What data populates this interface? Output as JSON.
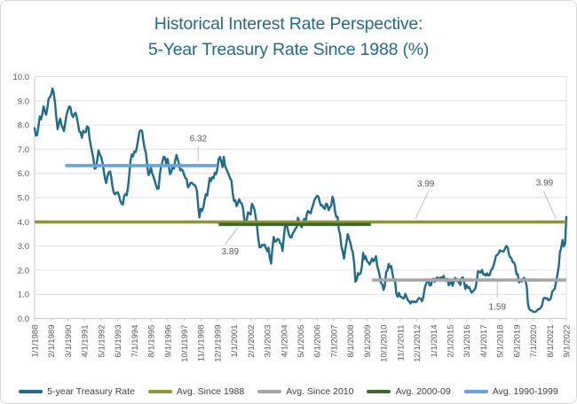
{
  "title": {
    "line1": "Historical Interest Rate Perspective:",
    "line2": "5-Year Treasury Rate Since 1988 (%)"
  },
  "colors": {
    "title_text": "#1f6b8c",
    "treasury_line": "#1e6c8b",
    "avg_since_1988": "#8f972e",
    "avg_since_2010": "#a6a6a6",
    "avg_2000_09": "#3a682f",
    "avg_1990_1999": "#67a3da",
    "gridline": "#e0e0e0",
    "axis_line": "#c8c8c8",
    "axis_label_text": "#595959",
    "annotation_text": "#404040",
    "leader_line": "#bfbfbf"
  },
  "chart_data": {
    "type": "line",
    "title": "Historical Interest Rate Perspective: 5-Year Treasury Rate Since 1988 (%)",
    "grid": "horizontal",
    "legend_position": "bottom",
    "y_axis": {
      "min": 0,
      "max": 10,
      "tick_step": 1,
      "tick_labels": [
        "0.0",
        "1.0",
        "2.0",
        "3.0",
        "4.0",
        "5.0",
        "6.0",
        "7.0",
        "8.0",
        "9.0",
        "10.0"
      ]
    },
    "x_axis": {
      "months_per_tick": 13,
      "tick_labels": [
        "1/1/1988",
        "2/1/1989",
        "3/1/1990",
        "4/1/1991",
        "5/1/1992",
        "6/1/1993",
        "7/1/1994",
        "8/1/1995",
        "9/1/1996",
        "10/1/1997",
        "11/1/1998",
        "12/1/1999",
        "1/1/2001",
        "2/1/2002",
        "3/1/2003",
        "4/1/2004",
        "5/1/2005",
        "6/1/2006",
        "7/1/2007",
        "8/1/2008",
        "9/1/2009",
        "10/1/2010",
        "11/1/2011",
        "12/1/2012",
        "1/1/2014",
        "2/1/2015",
        "3/1/2016",
        "4/1/2017",
        "5/1/2018",
        "6/1/2019",
        "7/1/2020",
        "8/1/2021",
        "9/1/2022"
      ]
    },
    "series": [
      {
        "name": "5-year Treasury Rate",
        "color": "#1e6c8b",
        "start": "1/1988",
        "frequency": "monthly",
        "values": [
          7.87,
          7.56,
          7.59,
          7.94,
          8.35,
          8.23,
          8.44,
          8.77,
          8.57,
          8.43,
          8.72,
          9.09,
          9.15,
          9.27,
          9.51,
          9.3,
          8.91,
          8.29,
          7.83,
          8.09,
          8.26,
          8.01,
          7.87,
          7.75,
          8.12,
          8.42,
          8.6,
          8.77,
          8.74,
          8.43,
          8.33,
          8.44,
          8.51,
          8.33,
          8.02,
          7.73,
          7.7,
          7.47,
          7.77,
          7.7,
          7.7,
          7.94,
          7.91,
          7.43,
          7.14,
          6.87,
          6.62,
          6.19,
          6.24,
          6.58,
          6.95,
          6.78,
          6.69,
          6.48,
          6.13,
          5.8,
          5.6,
          5.89,
          6.04,
          6.08,
          5.83,
          5.43,
          5.19,
          5.13,
          5.2,
          5.22,
          5.09,
          4.87,
          4.75,
          4.71,
          5.06,
          5.15,
          5.09,
          5.4,
          5.94,
          6.52,
          6.78,
          6.7,
          6.91,
          6.88,
          7.08,
          7.4,
          7.72,
          7.78,
          7.76,
          7.37,
          7.05,
          6.86,
          6.41,
          5.93,
          6.01,
          6.24,
          6.0,
          5.86,
          5.69,
          5.51,
          5.36,
          5.38,
          5.97,
          6.3,
          6.48,
          6.69,
          6.64,
          6.39,
          6.6,
          6.27,
          5.97,
          6.07,
          6.33,
          6.2,
          6.54,
          6.76,
          6.57,
          6.38,
          6.12,
          6.16,
          6.11,
          5.93,
          5.8,
          5.77,
          5.42,
          5.49,
          5.61,
          5.61,
          5.55,
          5.52,
          5.46,
          5.27,
          4.62,
          4.18,
          4.54,
          4.45,
          4.6,
          4.91,
          5.14,
          5.08,
          5.44,
          5.81,
          5.68,
          5.84,
          5.8,
          6.03,
          5.97,
          6.19,
          6.58,
          6.68,
          6.5,
          6.26,
          6.69,
          6.3,
          6.18,
          6.06,
          5.93,
          5.78,
          5.7,
          5.17,
          4.86,
          4.89,
          4.64,
          4.76,
          4.93,
          4.81,
          4.76,
          4.57,
          4.12,
          3.91,
          4.09,
          4.39,
          4.34,
          4.3,
          4.74,
          4.65,
          4.49,
          4.19,
          3.81,
          3.29,
          2.94,
          2.95,
          3.05,
          3.03,
          3.05,
          2.9,
          2.78,
          2.93,
          2.52,
          2.27,
          2.87,
          3.37,
          3.18,
          3.19,
          3.29,
          3.27,
          3.12,
          3.07,
          2.79,
          3.39,
          3.85,
          3.93,
          3.69,
          3.47,
          3.36,
          3.35,
          3.53,
          3.6,
          3.71,
          3.77,
          4.17,
          4.0,
          3.85,
          3.77,
          3.98,
          4.12,
          4.01,
          4.33,
          4.45,
          4.39,
          4.35,
          4.57,
          4.72,
          4.9,
          5.0,
          5.07,
          5.04,
          4.82,
          4.67,
          4.69,
          4.58,
          4.53,
          4.75,
          4.71,
          4.48,
          4.59,
          4.67,
          5.03,
          4.88,
          4.43,
          4.2,
          4.2,
          3.67,
          3.49,
          2.98,
          2.78,
          2.48,
          2.84,
          3.15,
          3.49,
          3.3,
          3.14,
          2.88,
          2.73,
          2.29,
          1.52,
          1.6,
          1.87,
          1.82,
          1.86,
          2.13,
          2.71,
          2.46,
          2.57,
          2.37,
          2.33,
          2.23,
          2.34,
          2.48,
          2.36,
          2.43,
          2.58,
          2.18,
          2.0,
          1.76,
          1.47,
          1.41,
          1.18,
          1.35,
          1.93,
          1.99,
          2.26,
          2.11,
          2.17,
          1.84,
          1.58,
          1.54,
          1.02,
          0.9,
          1.06,
          0.91,
          0.89,
          0.84,
          0.83,
          1.02,
          0.89,
          0.76,
          0.71,
          0.62,
          0.71,
          0.67,
          0.71,
          0.67,
          0.7,
          0.81,
          0.85,
          0.82,
          0.71,
          0.84,
          1.2,
          1.4,
          1.52,
          1.6,
          1.37,
          1.37,
          1.58,
          1.65,
          1.52,
          1.64,
          1.7,
          1.59,
          1.68,
          1.7,
          1.63,
          1.77,
          1.55,
          1.62,
          1.64,
          1.37,
          1.47,
          1.52,
          1.35,
          1.54,
          1.68,
          1.63,
          1.54,
          1.49,
          1.39,
          1.67,
          1.7,
          1.52,
          1.22,
          1.38,
          1.27,
          1.3,
          1.17,
          1.07,
          1.13,
          1.18,
          1.27,
          1.6,
          1.96,
          1.92,
          1.9,
          2.01,
          1.82,
          1.84,
          1.77,
          1.87,
          1.78,
          1.8,
          1.98,
          2.05,
          2.18,
          2.38,
          2.6,
          2.63,
          2.7,
          2.82,
          2.78,
          2.78,
          2.77,
          2.89,
          3.0,
          2.95,
          2.68,
          2.54,
          2.49,
          2.34,
          2.31,
          2.19,
          1.83,
          1.83,
          1.49,
          1.57,
          1.53,
          1.64,
          1.68,
          1.56,
          1.32,
          0.59,
          0.39,
          0.34,
          0.33,
          0.28,
          0.27,
          0.28,
          0.33,
          0.39,
          0.39,
          0.45,
          0.54,
          0.82,
          0.86,
          0.82,
          0.84,
          0.76,
          0.77,
          0.86,
          1.12,
          1.18,
          1.23,
          1.53,
          1.81,
          2.13,
          2.75,
          2.92,
          3.25,
          2.98,
          3.1,
          4.2
        ]
      }
    ],
    "avg_lines": [
      {
        "id": "avg-since-1988",
        "name": "Avg. Since 1988",
        "value": 3.99,
        "color": "#8f972e",
        "start_month": 0,
        "end_month": 416
      },
      {
        "id": "avg-2000-09",
        "name": "Avg. 2000-09",
        "value": 3.89,
        "color": "#3a682f",
        "start_month": 144,
        "end_month": 263
      },
      {
        "id": "avg-since-2010",
        "name": "Avg. Since 2010",
        "value": 1.59,
        "color": "#a6a6a6",
        "start_month": 264,
        "end_month": 416
      },
      {
        "id": "avg-1990-1999",
        "name": "Avg. 1990-1999",
        "value": 6.32,
        "color": "#67a3da",
        "start_month": 24,
        "end_month": 143
      }
    ],
    "annotations": [
      {
        "text": "6.32",
        "label": {
          "m": 128,
          "v": 7.45
        },
        "leader": [
          {
            "m": 128,
            "v": 7.12
          },
          {
            "m": 128,
            "v": 6.5
          }
        ]
      },
      {
        "text": "3.89",
        "label": {
          "m": 153,
          "v": 2.78
        },
        "leader": [
          {
            "m": 149,
            "v": 3.05
          },
          {
            "m": 159,
            "v": 3.77
          }
        ]
      },
      {
        "text": "3.99",
        "label": {
          "m": 306,
          "v": 5.58
        },
        "leader": [
          {
            "m": 308,
            "v": 5.25
          },
          {
            "m": 298,
            "v": 4.12
          }
        ]
      },
      {
        "text": "3.99",
        "label": {
          "m": 399,
          "v": 5.62
        },
        "leader": [
          {
            "m": 398,
            "v": 5.28
          },
          {
            "m": 408,
            "v": 4.12
          }
        ]
      },
      {
        "text": "1.59",
        "label": {
          "m": 362,
          "v": 0.5
        },
        "leader": [
          {
            "m": 362,
            "v": 0.85
          },
          {
            "m": 362,
            "v": 1.52
          }
        ]
      }
    ],
    "legend": [
      {
        "label": "5-year Treasury Rate",
        "color": "#1e6c8b"
      },
      {
        "label": "Avg. Since 1988",
        "color": "#8f972e"
      },
      {
        "label": "Avg. Since 2010",
        "color": "#a6a6a6"
      },
      {
        "label": "Avg. 2000-09",
        "color": "#3a682f"
      },
      {
        "label": "Avg. 1990-1999",
        "color": "#67a3da"
      }
    ]
  }
}
